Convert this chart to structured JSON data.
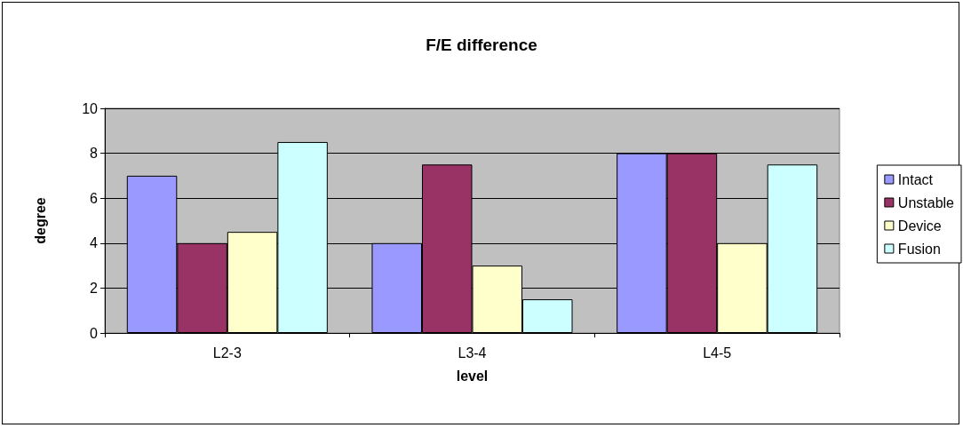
{
  "chart_data": {
    "type": "bar",
    "title": "F/E difference",
    "xlabel": "level",
    "ylabel": "degree",
    "categories": [
      "L2-3",
      "L3-4",
      "L4-5"
    ],
    "series": [
      {
        "name": "Intact",
        "color": "#9999ff",
        "values": [
          7,
          4,
          8
        ]
      },
      {
        "name": "Unstable",
        "color": "#993366",
        "values": [
          4,
          7.5,
          8
        ]
      },
      {
        "name": "Device",
        "color": "#ffffcc",
        "values": [
          4.5,
          3,
          4
        ]
      },
      {
        "name": "Fusion",
        "color": "#ccffff",
        "values": [
          8.5,
          1.5,
          7.5
        ]
      }
    ],
    "ylim": [
      0,
      10
    ],
    "yticks": [
      0,
      2,
      4,
      6,
      8,
      10
    ],
    "grid": "y",
    "legend": "right"
  }
}
